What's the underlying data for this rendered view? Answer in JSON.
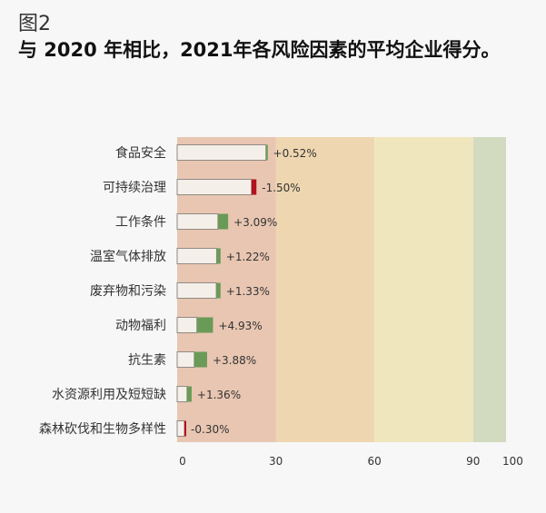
{
  "figure_label": "图2",
  "title": "与 2020 年相比，2021年各风险因素的平均企业得分。",
  "chart_data": {
    "type": "bar",
    "orientation": "horizontal",
    "categories": [
      "食品安全",
      "可持续治理",
      "工作条件",
      "温室气体排放",
      "废弃物和污染",
      "动物福利",
      "抗生素",
      "水资源利用及短短缺",
      "森林砍伐和生物多样性"
    ],
    "score_2021": [
      27.5,
      22.6,
      15.5,
      13.2,
      13.2,
      10.9,
      9.1,
      4.4,
      2.2
    ],
    "change_label": [
      "+0.52%",
      "-1.50%",
      "+3.09%",
      "+1.22%",
      "+1.33%",
      "+4.93%",
      "+3.88%",
      "+1.36%",
      "-0.30%"
    ],
    "change_points": [
      0.5,
      -1.5,
      3.1,
      1.2,
      1.3,
      4.9,
      3.9,
      1.4,
      -0.3
    ],
    "xlim": [
      0,
      100
    ],
    "x_ticks": [
      0,
      30,
      60,
      90,
      100
    ],
    "bands": [
      {
        "from": 0,
        "to": 30,
        "color": "#e8c6b2"
      },
      {
        "from": 30,
        "to": 60,
        "color": "#eed6b0"
      },
      {
        "from": 60,
        "to": 90,
        "color": "#efe6bd"
      },
      {
        "from": 90,
        "to": 100,
        "color": "#d2dac0"
      }
    ],
    "colors": {
      "base": "#f5efe9",
      "increase": "#6a9a57",
      "decrease": "#b11220",
      "outline": "#8f8a84"
    }
  }
}
